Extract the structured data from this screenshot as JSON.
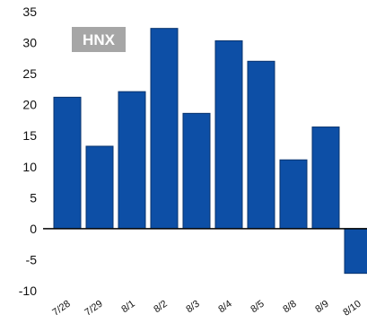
{
  "chart_data": {
    "type": "bar",
    "title": "",
    "xlabel": "",
    "ylabel": "",
    "badge": "HNX",
    "categories": [
      "7/28",
      "7/29",
      "8/1",
      "8/2",
      "8/3",
      "8/4",
      "8/5",
      "8/8",
      "8/9",
      "8/10"
    ],
    "values": [
      21.2,
      13.3,
      22.1,
      32.3,
      18.6,
      30.3,
      27.0,
      11.1,
      16.4,
      -7.2
    ],
    "yticks": [
      35,
      30,
      25,
      20,
      15,
      10,
      5,
      0,
      -5,
      -10
    ],
    "ylim": [
      -10,
      35
    ],
    "grid": false,
    "colors": {
      "bar_fill": "#0d4fa6",
      "bar_stroke": "#08336e",
      "badge_bg": "#a6a6a6",
      "zero_line": "#000000"
    }
  }
}
